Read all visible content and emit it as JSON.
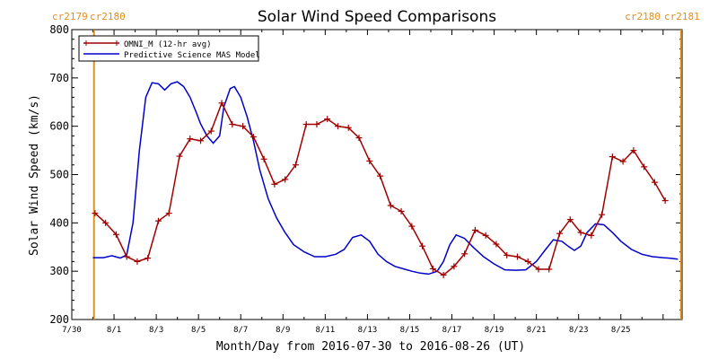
{
  "chart_data": {
    "type": "line",
    "title": "Solar Wind Speed Comparisons",
    "xlabel": "Month/Day from 2016-07-30 to 2016-08-26 (UT)",
    "ylabel": "Solar Wind Speed (km/s)",
    "ylim": [
      200,
      800
    ],
    "xlim_days": [
      0,
      28.9
    ],
    "yticks": [
      200,
      300,
      400,
      500,
      600,
      700,
      800
    ],
    "xticks": [
      {
        "day": 0,
        "label": "7/30"
      },
      {
        "day": 2,
        "label": "8/1"
      },
      {
        "day": 4,
        "label": "8/3"
      },
      {
        "day": 6,
        "label": "8/5"
      },
      {
        "day": 8,
        "label": "8/7"
      },
      {
        "day": 10,
        "label": "8/9"
      },
      {
        "day": 12,
        "label": "8/11"
      },
      {
        "day": 14,
        "label": "8/13"
      },
      {
        "day": 16,
        "label": "8/15"
      },
      {
        "day": 18,
        "label": "8/17"
      },
      {
        "day": 20,
        "label": "8/19"
      },
      {
        "day": 22,
        "label": "8/21"
      },
      {
        "day": 24,
        "label": "8/23"
      },
      {
        "day": 26,
        "label": "8/25"
      }
    ],
    "carrington_markers": [
      {
        "day": 1.05,
        "left_label": "cr2179",
        "right_label": "cr2180",
        "position": "top-left"
      },
      {
        "day": 28.85,
        "left_label": "cr2180",
        "right_label": "cr2181",
        "position": "top-right"
      }
    ],
    "legend_position": "top-left",
    "series": [
      {
        "name": "OMNI_M (12-hr avg)",
        "color": "#a00000",
        "marker": "plus",
        "x": [
          1.1,
          1.6,
          2.1,
          2.6,
          3.1,
          3.6,
          4.1,
          4.6,
          5.1,
          5.6,
          6.1,
          6.6,
          7.1,
          7.6,
          8.1,
          8.6,
          9.1,
          9.6,
          10.1,
          10.6,
          11.1,
          11.6,
          12.1,
          12.6,
          13.1,
          13.6,
          14.1,
          14.6,
          15.1,
          15.6,
          16.1,
          16.6,
          17.1,
          17.6,
          18.1,
          18.6,
          19.1,
          19.6,
          20.1,
          20.6,
          21.1,
          21.6,
          22.1,
          22.6,
          23.1,
          23.6,
          24.1,
          24.6,
          25.1,
          25.6,
          26.1,
          26.6,
          27.1,
          27.6,
          28.1
        ],
        "y": [
          420,
          400,
          376,
          330,
          320,
          327,
          404,
          420,
          538,
          574,
          570,
          590,
          648,
          604,
          600,
          578,
          532,
          480,
          490,
          520,
          604,
          604,
          615,
          600,
          597,
          576,
          528,
          497,
          436,
          424,
          393,
          352,
          305,
          292,
          310,
          336,
          385,
          374,
          356,
          333,
          330,
          320,
          304,
          304,
          378,
          407,
          380,
          374,
          417,
          537,
          527,
          550,
          516,
          484,
          446
        ]
      },
      {
        "name": "Predictive Science MAS Model",
        "color": "#0000cc",
        "marker": "none",
        "x": [
          1.0,
          1.5,
          1.9,
          2.3,
          2.6,
          2.9,
          3.2,
          3.5,
          3.8,
          4.1,
          4.4,
          4.7,
          5.0,
          5.3,
          5.6,
          5.9,
          6.1,
          6.4,
          6.7,
          7.0,
          7.2,
          7.5,
          7.7,
          8.0,
          8.3,
          8.6,
          8.9,
          9.3,
          9.7,
          10.1,
          10.5,
          11.0,
          11.5,
          12.0,
          12.5,
          12.9,
          13.3,
          13.7,
          14.1,
          14.5,
          14.9,
          15.3,
          15.7,
          16.1,
          16.5,
          16.9,
          17.3,
          17.6,
          17.9,
          18.2,
          18.6,
          19.0,
          19.5,
          20.0,
          20.5,
          21.0,
          21.5,
          22.0,
          22.4,
          22.8,
          23.2,
          23.5,
          23.8,
          24.1,
          24.4,
          24.8,
          25.2,
          25.6,
          26.0,
          26.5,
          27.0,
          27.5,
          28.0,
          28.3,
          28.7
        ],
        "y": [
          328,
          328,
          332,
          327,
          334,
          400,
          550,
          660,
          690,
          688,
          675,
          688,
          692,
          682,
          660,
          628,
          605,
          580,
          565,
          580,
          640,
          678,
          682,
          660,
          620,
          570,
          510,
          450,
          410,
          380,
          355,
          340,
          330,
          330,
          335,
          345,
          370,
          375,
          362,
          335,
          320,
          310,
          305,
          300,
          296,
          294,
          300,
          320,
          355,
          375,
          368,
          350,
          330,
          315,
          303,
          302,
          303,
          320,
          343,
          365,
          362,
          352,
          343,
          352,
          380,
          398,
          396,
          380,
          362,
          345,
          335,
          330,
          328,
          327,
          325
        ]
      }
    ]
  }
}
